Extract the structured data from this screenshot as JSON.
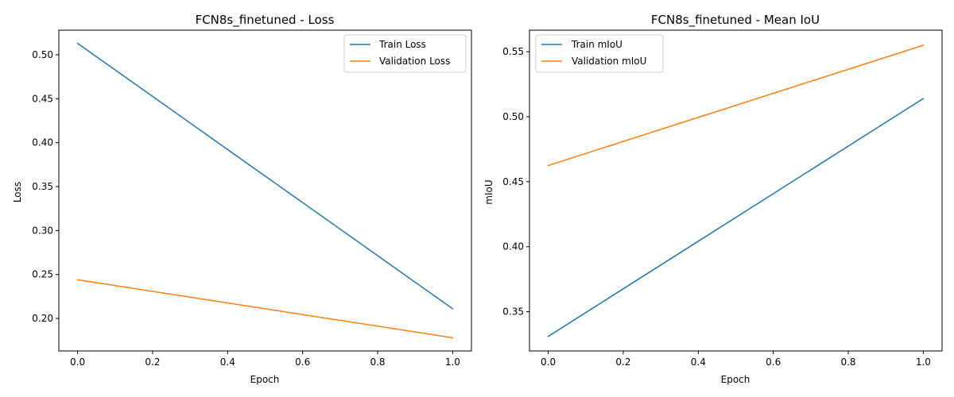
{
  "chart_data": [
    {
      "type": "line",
      "title": "FCN8s_finetuned - Loss",
      "xlabel": "Epoch",
      "ylabel": "Loss",
      "x": [
        0,
        1
      ],
      "xlim": [
        -0.05,
        1.05
      ],
      "ylim": [
        0.163,
        0.528
      ],
      "xticks": [
        "0.0",
        "0.2",
        "0.4",
        "0.6",
        "0.8",
        "1.0"
      ],
      "yticks": [
        "0.20",
        "0.25",
        "0.30",
        "0.35",
        "0.40",
        "0.45",
        "0.50"
      ],
      "grid": false,
      "legend_position": "top-right",
      "series": [
        {
          "name": "Train Loss",
          "values": [
            0.513,
            0.211
          ],
          "color": "#1f77b4"
        },
        {
          "name": "Validation Loss",
          "values": [
            0.244,
            0.178
          ],
          "color": "#ff7f0e"
        }
      ]
    },
    {
      "type": "line",
      "title": "FCN8s_finetuned - Mean IoU",
      "xlabel": "Epoch",
      "ylabel": "mIoU",
      "x": [
        0,
        1
      ],
      "xlim": [
        -0.05,
        1.05
      ],
      "ylim": [
        0.3198,
        0.5666
      ],
      "xticks": [
        "0.0",
        "0.2",
        "0.4",
        "0.6",
        "0.8",
        "1.0"
      ],
      "yticks": [
        "0.35",
        "0.40",
        "0.45",
        "0.50",
        "0.55"
      ],
      "grid": false,
      "legend_position": "top-left",
      "series": [
        {
          "name": "Train mIoU",
          "values": [
            0.331,
            0.514
          ],
          "color": "#1f77b4"
        },
        {
          "name": "Validation mIoU",
          "values": [
            0.4625,
            0.555
          ],
          "color": "#ff7f0e"
        }
      ]
    }
  ]
}
